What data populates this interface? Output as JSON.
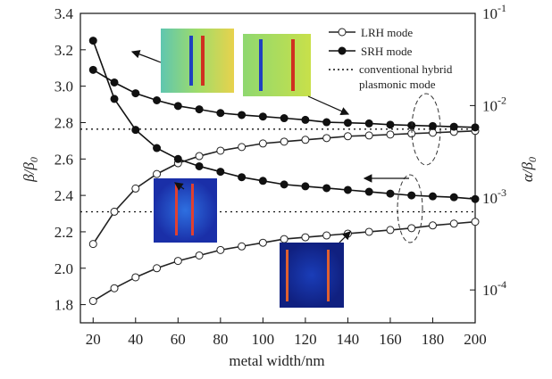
{
  "chart_data": {
    "type": "line",
    "x_label": "metal width/nm",
    "y_label": {
      "text": "β/β",
      "sub": "0"
    },
    "y2_label": {
      "text": "α/β",
      "sub": "0"
    },
    "x": [
      20,
      30,
      40,
      50,
      60,
      70,
      80,
      90,
      100,
      110,
      120,
      130,
      140,
      150,
      160,
      170,
      180,
      190,
      200
    ],
    "xlim": [
      14,
      200
    ],
    "xticks": [
      20,
      40,
      60,
      80,
      100,
      120,
      140,
      160,
      180,
      200
    ],
    "ylim": [
      1.7,
      3.4
    ],
    "yticks": [
      1.8,
      {
        "value": 2.0,
        "label": "2.0"
      },
      2.2,
      2.4,
      2.6,
      2.8,
      {
        "value": 3.0,
        "label": "3.0"
      },
      3.2,
      3.4
    ],
    "y2lim": [
      4.4e-05,
      0.1
    ],
    "y2_log": true,
    "y2ticks": [
      {
        "value": 0.0001,
        "label": "10",
        "exponent": "-4"
      },
      {
        "value": 0.001,
        "label": "10",
        "exponent": "-3"
      },
      {
        "value": 0.01,
        "label": "10",
        "exponent": "-2"
      },
      {
        "value": 0.1,
        "label": "10",
        "exponent": "-1"
      }
    ],
    "series": [
      {
        "name": "LRH mode",
        "marker": "open",
        "color": "#222",
        "values": [
          1.82,
          1.89,
          1.95,
          2.0,
          2.04,
          2.07,
          2.1,
          2.12,
          2.14,
          2.16,
          2.17,
          2.18,
          2.19,
          2.2,
          2.21,
          2.22,
          2.235,
          2.245,
          2.255
        ],
        "y2_values": [
          0.000315,
          0.000706,
          0.00126,
          0.00181,
          0.00237,
          0.00283,
          0.00324,
          0.00355,
          0.00388,
          0.00406,
          0.00425,
          0.00444,
          0.00465,
          0.00474,
          0.00485,
          0.00497,
          0.00507,
          0.00519,
          0.00531
        ]
      },
      {
        "name": "SRH mode",
        "marker": "filled",
        "color": "#111",
        "values": [
          3.25,
          2.93,
          2.76,
          2.66,
          2.6,
          2.56,
          2.53,
          2.5,
          2.48,
          2.46,
          2.45,
          2.44,
          2.43,
          2.42,
          2.41,
          2.4,
          2.395,
          2.39,
          2.38
        ],
        "y2_values": [
          0.0244,
          0.0178,
          0.0136,
          0.0114,
          0.0099,
          0.0091,
          0.0083,
          0.0079,
          0.0076,
          0.0073,
          0.007,
          0.0066,
          0.0065,
          0.0064,
          0.0062,
          0.0061,
          0.006,
          0.0059,
          0.0058
        ]
      }
    ],
    "reference": {
      "name": "conventional hybrid plasmonic mode",
      "style": "dotted",
      "y": 2.31,
      "y2": 0.00555
    }
  }
}
